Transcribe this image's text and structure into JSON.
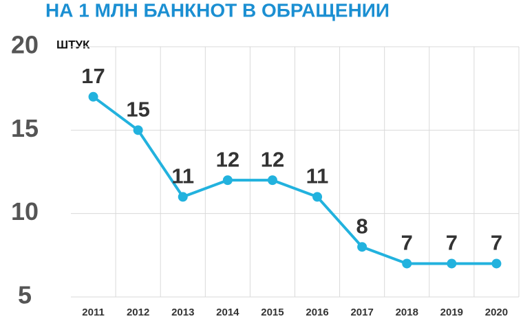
{
  "chart_data": {
    "type": "line",
    "title": "НА 1 МЛН БАНКНОТ В ОБРАЩЕНИИ",
    "y_label": "ШТУК",
    "categories": [
      "2011",
      "2012",
      "2013",
      "2014",
      "2015",
      "2016",
      "2017",
      "2018",
      "2019",
      "2020"
    ],
    "values": [
      17,
      15,
      11,
      12,
      12,
      11,
      8,
      7,
      7,
      7
    ],
    "color": "#22b2de",
    "ylim": [
      5,
      20
    ],
    "yticks": [
      5,
      10,
      15,
      20
    ],
    "grid": true
  }
}
